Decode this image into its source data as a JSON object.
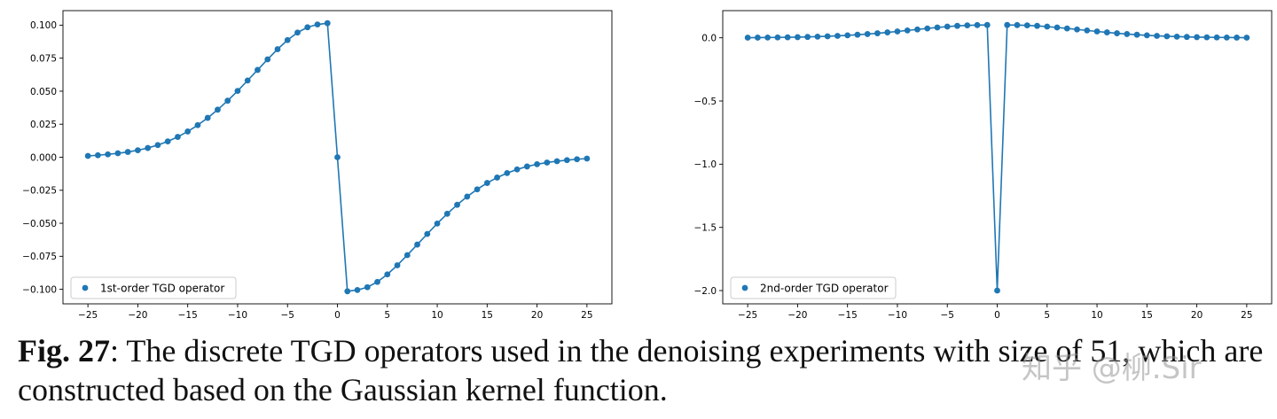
{
  "chart_data": [
    {
      "type": "line",
      "title": "",
      "xlabel": "",
      "ylabel": "",
      "xlim": [
        -27.5,
        27.5
      ],
      "ylim": [
        -0.111,
        0.111
      ],
      "xticks": [
        -25,
        -20,
        -15,
        -10,
        -5,
        0,
        5,
        10,
        15,
        20,
        25
      ],
      "xtick_labels": [
        "−25",
        "−20",
        "−15",
        "−10",
        "−5",
        "0",
        "5",
        "10",
        "15",
        "20",
        "25"
      ],
      "yticks": [
        0.1,
        0.075,
        0.05,
        0.025,
        0,
        -0.025,
        -0.05,
        -0.075,
        -0.1
      ],
      "ytick_labels": [
        "0.100",
        "0.075",
        "0.050",
        "0.025",
        "0.000",
        "−0.025",
        "−0.050",
        "−0.075",
        "−0.100"
      ],
      "grid": false,
      "legend_position": "lower-left",
      "color": "#1f77b4",
      "series": [
        {
          "name": "1st-order TGD operator",
          "x": [
            -25,
            -24,
            -23,
            -22,
            -21,
            -20,
            -19,
            -18,
            -17,
            -16,
            -15,
            -14,
            -13,
            -12,
            -11,
            -10,
            -9,
            -8,
            -7,
            -6,
            -5,
            -4,
            -3,
            -2,
            -1,
            0,
            1,
            2,
            3,
            4,
            5,
            6,
            7,
            8,
            9,
            10,
            11,
            12,
            13,
            14,
            15,
            16,
            17,
            18,
            19,
            20,
            21,
            22,
            23,
            24,
            25
          ],
          "y": [
            0.001,
            0.0015,
            0.0022,
            0.003,
            0.004,
            0.0053,
            0.007,
            0.0092,
            0.012,
            0.0154,
            0.0195,
            0.0243,
            0.0298,
            0.036,
            0.0428,
            0.0502,
            0.0581,
            0.0661,
            0.0741,
            0.0818,
            0.0887,
            0.0944,
            0.0984,
            0.1005,
            0.1015,
            0,
            -0.1015,
            -0.1005,
            -0.0984,
            -0.0944,
            -0.0887,
            -0.0818,
            -0.0741,
            -0.0661,
            -0.0581,
            -0.0502,
            -0.0428,
            -0.036,
            -0.0298,
            -0.0243,
            -0.0195,
            -0.0154,
            -0.012,
            -0.0092,
            -0.007,
            -0.0053,
            -0.004,
            -0.003,
            -0.0022,
            -0.0015,
            -0.001
          ]
        }
      ]
    },
    {
      "type": "line",
      "title": "",
      "xlabel": "",
      "ylabel": "",
      "xlim": [
        -27.5,
        27.5
      ],
      "ylim": [
        -2.105,
        0.215
      ],
      "xticks": [
        -25,
        -20,
        -15,
        -10,
        -5,
        0,
        5,
        10,
        15,
        20,
        25
      ],
      "xtick_labels": [
        "−25",
        "−20",
        "−15",
        "−10",
        "−5",
        "0",
        "5",
        "10",
        "15",
        "20",
        "25"
      ],
      "yticks": [
        0,
        -0.5,
        -1,
        -1.5,
        -2
      ],
      "ytick_labels": [
        "0.0",
        "−0.5",
        "−1.0",
        "−1.5",
        "−2.0"
      ],
      "grid": false,
      "legend_position": "lower-left",
      "color": "#1f77b4",
      "series": [
        {
          "name": "2nd-order TGD operator",
          "x": [
            -25,
            -24,
            -23,
            -22,
            -21,
            -20,
            -19,
            -18,
            -17,
            -16,
            -15,
            -14,
            -13,
            -12,
            -11,
            -10,
            -9,
            -8,
            -7,
            -6,
            -5,
            -4,
            -3,
            -2,
            -1,
            0,
            1,
            2,
            3,
            4,
            5,
            6,
            7,
            8,
            9,
            10,
            11,
            12,
            13,
            14,
            15,
            16,
            17,
            18,
            19,
            20,
            21,
            22,
            23,
            24,
            25
          ],
          "y": [
            0.001,
            0.0015,
            0.0022,
            0.003,
            0.004,
            0.0053,
            0.007,
            0.0092,
            0.012,
            0.0154,
            0.0195,
            0.0243,
            0.0298,
            0.036,
            0.0428,
            0.0502,
            0.0581,
            0.0661,
            0.0741,
            0.0818,
            0.0887,
            0.0944,
            0.0984,
            0.1005,
            0.1015,
            -2.0,
            0.1015,
            0.1005,
            0.0984,
            0.0944,
            0.0887,
            0.0818,
            0.0741,
            0.0661,
            0.0581,
            0.0502,
            0.0428,
            0.036,
            0.0298,
            0.0243,
            0.0195,
            0.0154,
            0.012,
            0.0092,
            0.007,
            0.0053,
            0.004,
            0.003,
            0.0022,
            0.0015,
            0.001
          ]
        }
      ]
    }
  ],
  "caption": {
    "label": "Fig. 27",
    "text": ": The discrete TGD operators used in the denoising experiments with size of 51, which are constructed based on the Gaussian kernel function."
  },
  "watermark": "知乎 @柳.Sir"
}
